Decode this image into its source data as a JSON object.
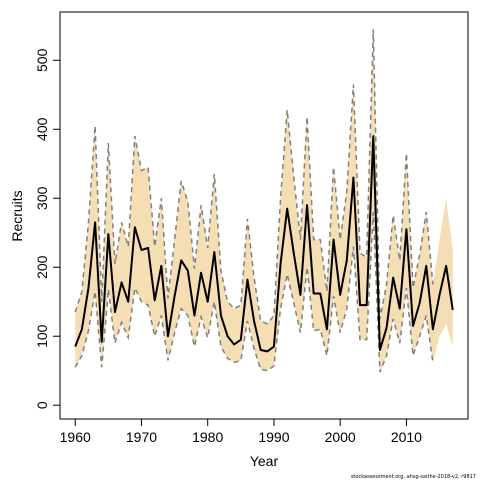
{
  "chart_data": {
    "type": "line",
    "xlabel": "Year",
    "ylabel": "Recruits",
    "xlim": [
      1957.7,
      2019.3
    ],
    "ylim": [
      -20,
      570
    ],
    "x_ticks": [
      1960,
      1970,
      1980,
      1990,
      2000,
      2010
    ],
    "y_ticks": [
      0,
      100,
      200,
      300,
      400,
      500
    ],
    "footnote": "stockassessment.org, ahsg-saithe-2018-v2, r9817",
    "colors": {
      "band": "#f5deb3",
      "estimate": "#000000",
      "bounds": "#808080",
      "frame": "#000000"
    },
    "series": [
      {
        "role": "estimate",
        "x": [
          1960,
          1961,
          1962,
          1963,
          1964,
          1965,
          1966,
          1967,
          1968,
          1969,
          1970,
          1971,
          1972,
          1973,
          1974,
          1975,
          1976,
          1977,
          1978,
          1979,
          1980,
          1981,
          1982,
          1983,
          1984,
          1985,
          1986,
          1987,
          1988,
          1989,
          1990,
          1991,
          1992,
          1993,
          1994,
          1995,
          1996,
          1997,
          1998,
          1999,
          2000,
          2001,
          2002,
          2003,
          2004,
          2005,
          2006,
          2007,
          2008,
          2009,
          2010,
          2011,
          2012,
          2013,
          2014,
          2015,
          2016,
          2017
        ],
        "values": [
          85,
          110,
          170,
          265,
          92,
          248,
          135,
          178,
          150,
          258,
          225,
          228,
          152,
          202,
          100,
          158,
          210,
          195,
          130,
          192,
          150,
          222,
          130,
          100,
          88,
          95,
          182,
          122,
          80,
          78,
          85,
          205,
          285,
          220,
          160,
          290,
          162,
          162,
          110,
          240,
          160,
          210,
          330,
          145,
          145,
          390,
          80,
          112,
          185,
          140,
          255,
          115,
          148,
          202,
          110,
          160,
          202,
          138
        ]
      },
      {
        "role": "lower",
        "x": [
          1960,
          1961,
          1962,
          1963,
          1964,
          1965,
          1966,
          1967,
          1968,
          1969,
          1970,
          1971,
          1972,
          1973,
          1974,
          1975,
          1976,
          1977,
          1978,
          1979,
          1980,
          1981,
          1982,
          1983,
          1984,
          1985,
          1986,
          1987,
          1988,
          1989,
          1990,
          1991,
          1992,
          1993,
          1994,
          1995,
          1996,
          1997,
          1998,
          1999,
          2000,
          2001,
          2002,
          2003,
          2004,
          2005,
          2006,
          2007,
          2008,
          2009,
          2010,
          2011,
          2012,
          2013,
          2014,
          2015,
          2016,
          2017
        ],
        "values": [
          55,
          72,
          108,
          165,
          55,
          168,
          90,
          120,
          98,
          170,
          150,
          145,
          100,
          130,
          65,
          105,
          140,
          130,
          85,
          128,
          98,
          150,
          85,
          68,
          62,
          65,
          122,
          82,
          52,
          50,
          57,
          140,
          190,
          148,
          105,
          200,
          108,
          110,
          72,
          158,
          105,
          140,
          230,
          95,
          95,
          280,
          48,
          72,
          125,
          90,
          170,
          72,
          100,
          130,
          62,
          100,
          118,
          85
        ]
      },
      {
        "role": "upper",
        "x": [
          1960,
          1961,
          1962,
          1963,
          1964,
          1965,
          1966,
          1967,
          1968,
          1969,
          1970,
          1971,
          1972,
          1973,
          1974,
          1975,
          1976,
          1977,
          1978,
          1979,
          1980,
          1981,
          1982,
          1983,
          1984,
          1985,
          1986,
          1987,
          1988,
          1989,
          1990,
          1991,
          1992,
          1993,
          1994,
          1995,
          1996,
          1997,
          1998,
          1999,
          2000,
          2001,
          2002,
          2003,
          2004,
          2005,
          2006,
          2007,
          2008,
          2009,
          2010,
          2011,
          2012,
          2013,
          2014,
          2015,
          2016,
          2017
        ],
        "values": [
          135,
          165,
          265,
          405,
          150,
          380,
          205,
          265,
          230,
          390,
          340,
          345,
          230,
          300,
          155,
          240,
          325,
          295,
          198,
          290,
          228,
          335,
          195,
          150,
          140,
          145,
          270,
          185,
          122,
          118,
          130,
          300,
          428,
          330,
          240,
          418,
          240,
          240,
          165,
          345,
          240,
          310,
          465,
          220,
          215,
          545,
          125,
          175,
          275,
          210,
          365,
          170,
          218,
          280,
          175,
          240,
          300,
          225
        ]
      }
    ],
    "dashed_bounds_end": 2014
  }
}
